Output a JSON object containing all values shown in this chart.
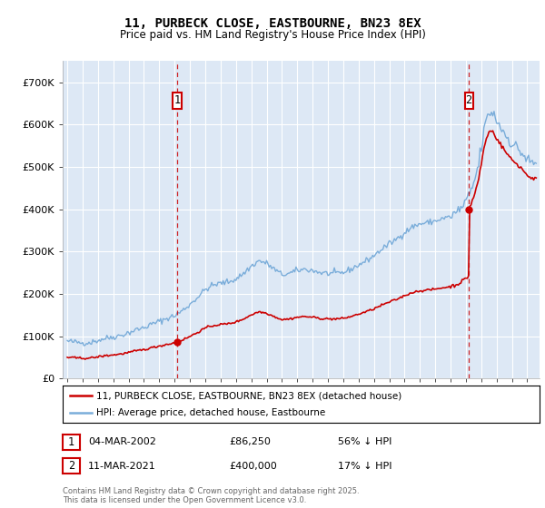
{
  "title": "11, PURBECK CLOSE, EASTBOURNE, BN23 8EX",
  "subtitle": "Price paid vs. HM Land Registry's House Price Index (HPI)",
  "ylim": [
    0,
    750000
  ],
  "yticks": [
    0,
    100000,
    200000,
    300000,
    400000,
    500000,
    600000,
    700000
  ],
  "ytick_labels": [
    "£0",
    "£100K",
    "£200K",
    "£300K",
    "£400K",
    "£500K",
    "£600K",
    "£700K"
  ],
  "hpi_color": "#7aadda",
  "property_color": "#cc0000",
  "background_color": "#dde8f5",
  "grid_color": "#ffffff",
  "transaction1_t": 2002.17,
  "transaction1_price": 86250,
  "transaction2_t": 2021.19,
  "transaction2_price": 400000,
  "legend_property": "11, PURBECK CLOSE, EASTBOURNE, BN23 8EX (detached house)",
  "legend_hpi": "HPI: Average price, detached house, Eastbourne",
  "footnote": "Contains HM Land Registry data © Crown copyright and database right 2025.\nThis data is licensed under the Open Government Licence v3.0.",
  "xlim_start": 1994.7,
  "xlim_end": 2025.8,
  "row1_date": "04-MAR-2002",
  "row1_price": "£86,250",
  "row1_pct": "56% ↓ HPI",
  "row2_date": "11-MAR-2021",
  "row2_price": "£400,000",
  "row2_pct": "17% ↓ HPI"
}
